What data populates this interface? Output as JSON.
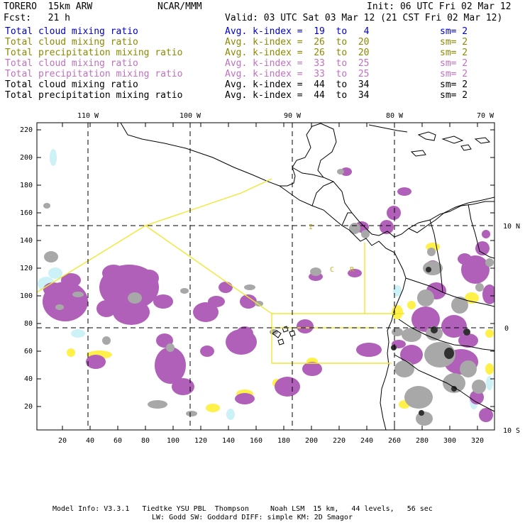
{
  "header": {
    "model": "TORERO  15km ARW",
    "org": "NCAR/MMM",
    "init": "Init: 06 UTC Fri 02 Mar 12",
    "fcst": "Fcst:   21 h",
    "valid": "Valid: 03 UTC Sat 03 Mar 12 (21 CST Fri 02 Mar 12)"
  },
  "legend": [
    {
      "field": "Total cloud mixing ratio",
      "kindex": "Avg. k-index =  19  to   4",
      "sm": "sm= 2",
      "color": "#0000cc"
    },
    {
      "field": "Total cloud mixing ratio",
      "kindex": "Avg. k-index =  26  to  20",
      "sm": "sm= 2",
      "color": "#8a8a00"
    },
    {
      "field": "Total precipitation mixing ratio",
      "kindex": "Avg. k-index =  26  to  20",
      "sm": "sm= 2",
      "color": "#8a8a00"
    },
    {
      "field": "Total cloud mixing ratio",
      "kindex": "Avg. k-index =  33  to  25",
      "sm": "sm= 2",
      "color": "#c070c0"
    },
    {
      "field": "Total precipitation mixing ratio",
      "kindex": "Avg. k-index =  33  to  25",
      "sm": "sm= 2",
      "color": "#c070c0"
    },
    {
      "field": "Total cloud mixing ratio",
      "kindex": "Avg. k-index =  44  to  34",
      "sm": "sm= 2",
      "color": "#000000"
    },
    {
      "field": "Total precipitation mixing ratio",
      "kindex": "Avg. k-index =  44  to  34",
      "sm": "sm= 2",
      "color": "#000000"
    }
  ],
  "axes": {
    "x_ticks": [
      "20",
      "40",
      "60",
      "80",
      "100",
      "120",
      "140",
      "160",
      "180",
      "200",
      "220",
      "240",
      "260",
      "280",
      "300",
      "320"
    ],
    "y_ticks": [
      "20",
      "40",
      "60",
      "80",
      "100",
      "120",
      "140",
      "160",
      "180",
      "200",
      "220"
    ],
    "lon_labels": [
      "110 W",
      "100 W",
      "90 W",
      "80 W",
      "70 W"
    ],
    "lat_labels": [
      "10 N",
      "0",
      "10 S"
    ]
  },
  "map_labels": [
    "I",
    "C",
    "R"
  ],
  "colors": {
    "cloud_light": "#ccf2f8",
    "cloud_mid": "#b060b8",
    "precip_light": "#fff04a",
    "dense_gray": "#a8a8a8",
    "dark_core": "#303030",
    "coast": "#000000",
    "domain_box": "#f0e830"
  },
  "footer": {
    "line1": "Model Info: V3.3.1   Tiedtke YSU PBL  Thompson     Noah LSM  15 km,   44 levels,   56 sec",
    "line2": "LW: Godd SW: Goddard DIFF: simple KM: 2D Smagor"
  }
}
